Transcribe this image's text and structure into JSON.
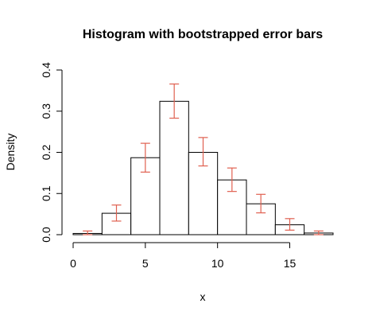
{
  "chart_data": {
    "type": "bar",
    "title": "Histogram with bootstrapped error bars",
    "xlabel": "x",
    "ylabel": "Density",
    "xlim": [
      0,
      18
    ],
    "ylim": [
      0,
      0.4
    ],
    "x_ticks": [
      "0",
      "5",
      "10",
      "15"
    ],
    "y_ticks": [
      "0.0",
      "0.1",
      "0.2",
      "0.3",
      "0.4"
    ],
    "bins": [
      {
        "from": 0,
        "to": 2,
        "density": 0.003,
        "err_low": 0.0,
        "err_high": 0.009
      },
      {
        "from": 2,
        "to": 4,
        "density": 0.052,
        "err_low": 0.033,
        "err_high": 0.072
      },
      {
        "from": 4,
        "to": 6,
        "density": 0.187,
        "err_low": 0.152,
        "err_high": 0.222
      },
      {
        "from": 6,
        "to": 8,
        "density": 0.324,
        "err_low": 0.283,
        "err_high": 0.366
      },
      {
        "from": 8,
        "to": 10,
        "density": 0.2,
        "err_low": 0.167,
        "err_high": 0.236
      },
      {
        "from": 10,
        "to": 12,
        "density": 0.133,
        "err_low": 0.105,
        "err_high": 0.162
      },
      {
        "from": 12,
        "to": 14,
        "density": 0.075,
        "err_low": 0.053,
        "err_high": 0.098
      },
      {
        "from": 14,
        "to": 16,
        "density": 0.024,
        "err_low": 0.011,
        "err_high": 0.039
      },
      {
        "from": 16,
        "to": 18,
        "density": 0.004,
        "err_low": 0.0,
        "err_high": 0.009
      }
    ],
    "grid": false,
    "error_bar_color": "#e06050",
    "bar_fill": "#ffffff",
    "bar_stroke": "#000000"
  }
}
